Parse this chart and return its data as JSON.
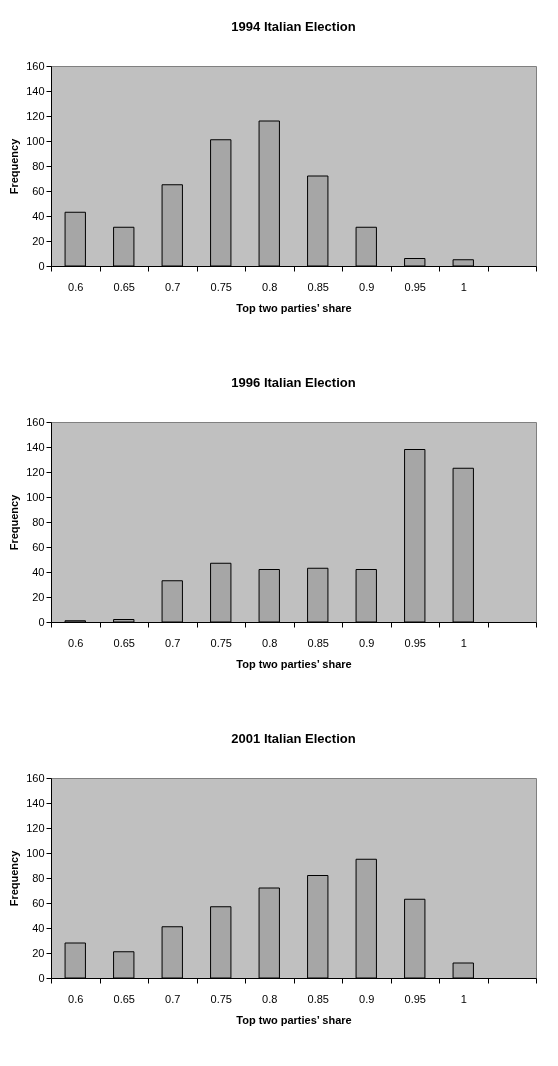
{
  "chart_data": [
    {
      "type": "bar",
      "title": "1994 Italian Election",
      "xlabel": "Top two parties’ share",
      "ylabel": "Frequency",
      "categories": [
        "0.6",
        "0.65",
        "0.7",
        "0.75",
        "0.8",
        "0.85",
        "0.9",
        "0.95",
        "1",
        null
      ],
      "values": [
        43,
        31,
        65,
        101,
        116,
        72,
        31,
        6,
        5,
        null
      ],
      "color": "#a6a6a6",
      "ylim": [
        0,
        160
      ],
      "yticks": [
        0,
        20,
        40,
        60,
        80,
        100,
        120,
        140,
        160
      ],
      "grid": false
    },
    {
      "type": "bar",
      "title": "1996 Italian Election",
      "xlabel": "Top two parties’ share",
      "ylabel": "Frequency",
      "categories": [
        "0.6",
        "0.65",
        "0.7",
        "0.75",
        "0.8",
        "0.85",
        "0.9",
        "0.95",
        "1",
        null
      ],
      "values": [
        1,
        2,
        33,
        47,
        42,
        43,
        42,
        138,
        123,
        null
      ],
      "color": "#a6a6a6",
      "ylim": [
        0,
        160
      ],
      "yticks": [
        0,
        20,
        40,
        60,
        80,
        100,
        120,
        140,
        160
      ],
      "grid": false
    },
    {
      "type": "bar",
      "title": "2001 Italian Election",
      "xlabel": "Top two parties’ share",
      "ylabel": "Frequency",
      "categories": [
        "0.6",
        "0.65",
        "0.7",
        "0.75",
        "0.8",
        "0.85",
        "0.9",
        "0.95",
        "1",
        null
      ],
      "values": [
        28,
        21,
        41,
        57,
        72,
        82,
        95,
        63,
        12,
        null
      ],
      "color": "#a6a6a6",
      "ylim": [
        0,
        160
      ],
      "yticks": [
        0,
        20,
        40,
        60,
        80,
        100,
        120,
        140,
        160
      ],
      "grid": false
    }
  ]
}
